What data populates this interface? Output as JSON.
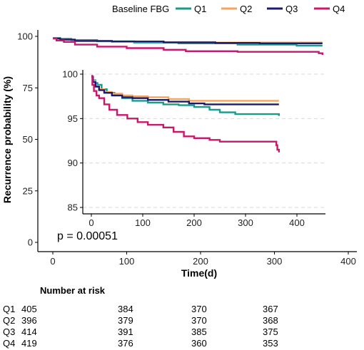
{
  "chart_data": [
    {
      "type": "line",
      "subtype": "kaplan-meier",
      "title": "",
      "xlabel": "Time(d)",
      "ylabel": "Recurrence probability (%)",
      "xlim": [
        0,
        400
      ],
      "ylim": [
        0,
        100
      ],
      "x_ticks": [
        0,
        100,
        200,
        300,
        400
      ],
      "y_ticks": [
        0,
        25,
        50,
        75,
        100
      ],
      "annotation": "p = 0.00051",
      "legend": {
        "title": "Baseline FBG",
        "position": "top",
        "entries": [
          "Q1",
          "Q2",
          "Q3",
          "Q4"
        ]
      },
      "series": [
        {
          "name": "Q1",
          "color": "#1a9a8a",
          "x": [
            0,
            10,
            25,
            60,
            110,
            170,
            250,
            330,
            365
          ],
          "y": [
            99.2,
            98.8,
            98.2,
            97.6,
            97.0,
            96.6,
            96.0,
            95.5,
            95.5
          ]
        },
        {
          "name": "Q2",
          "color": "#f4a460",
          "x": [
            0,
            10,
            30,
            80,
            150,
            220,
            280,
            365
          ],
          "y": [
            99.0,
            98.4,
            97.8,
            97.4,
            97.2,
            97.0,
            97.0,
            97.0
          ]
        },
        {
          "name": "Q3",
          "color": "#1a1a6e",
          "x": [
            0,
            10,
            30,
            80,
            150,
            220,
            280,
            365
          ],
          "y": [
            99.0,
            98.4,
            97.8,
            97.5,
            97.1,
            96.8,
            96.6,
            96.6
          ]
        },
        {
          "name": "Q4",
          "color": "#c8176d",
          "x": [
            0,
            5,
            15,
            30,
            60,
            100,
            150,
            180,
            250,
            330,
            360,
            365
          ],
          "y": [
            99.0,
            98.0,
            97.3,
            96.0,
            95.0,
            94.3,
            93.5,
            92.8,
            92.5,
            92.5,
            91.8,
            91.0
          ]
        }
      ]
    },
    {
      "type": "line",
      "subtype": "kaplan-meier-inset",
      "title": "",
      "xlabel": "",
      "ylabel": "",
      "xlim": [
        -10,
        415
      ],
      "ylim": [
        84,
        100.5
      ],
      "x_ticks": [
        0,
        100,
        200,
        300,
        400
      ],
      "y_ticks": [
        85,
        90,
        95,
        100
      ],
      "grid": true,
      "series": [
        {
          "name": "Q1",
          "color": "#1a9a8a",
          "x": [
            0,
            3,
            8,
            12,
            20,
            30,
            45,
            60,
            80,
            110,
            140,
            170,
            200,
            230,
            250,
            280,
            330,
            365
          ],
          "y": [
            99.7,
            99.3,
            99.0,
            98.8,
            98.3,
            97.9,
            97.6,
            97.3,
            97.0,
            96.8,
            96.6,
            96.5,
            96.3,
            96.0,
            95.7,
            95.5,
            95.5,
            95.3
          ]
        },
        {
          "name": "Q2",
          "color": "#f4a460",
          "x": [
            0,
            3,
            8,
            15,
            25,
            40,
            60,
            80,
            110,
            150,
            190,
            220,
            250,
            300,
            365
          ],
          "y": [
            99.7,
            99.2,
            98.7,
            98.3,
            98.0,
            97.8,
            97.6,
            97.5,
            97.4,
            97.2,
            97.0,
            97.0,
            97.0,
            97.0,
            97.0
          ]
        },
        {
          "name": "Q3",
          "color": "#1a1a6e",
          "x": [
            0,
            3,
            8,
            15,
            25,
            40,
            60,
            80,
            110,
            150,
            190,
            220,
            250,
            300,
            365
          ],
          "y": [
            99.7,
            99.1,
            98.6,
            98.2,
            97.9,
            97.6,
            97.4,
            97.3,
            97.1,
            96.9,
            96.7,
            96.6,
            96.6,
            96.6,
            96.6
          ]
        },
        {
          "name": "Q4",
          "color": "#c8176d",
          "x": [
            0,
            2,
            5,
            10,
            15,
            25,
            35,
            50,
            70,
            90,
            110,
            140,
            160,
            180,
            200,
            230,
            250,
            300,
            350,
            360,
            362,
            365
          ],
          "y": [
            99.8,
            98.8,
            98.1,
            97.6,
            97.3,
            96.6,
            96.0,
            95.4,
            95.0,
            94.6,
            94.3,
            94.0,
            93.5,
            93.0,
            92.8,
            92.6,
            92.4,
            92.4,
            92.4,
            92.0,
            91.5,
            91.2
          ]
        }
      ]
    }
  ],
  "risk_table": {
    "title": "Number at risk",
    "times": [
      0,
      100,
      200,
      300
    ],
    "rows": [
      {
        "group": "Q1",
        "values": [
          405,
          384,
          370,
          367
        ]
      },
      {
        "group": "Q2",
        "values": [
          396,
          379,
          370,
          368
        ]
      },
      {
        "group": "Q3",
        "values": [
          414,
          391,
          385,
          375
        ]
      },
      {
        "group": "Q4",
        "values": [
          419,
          376,
          360,
          353
        ]
      }
    ]
  }
}
